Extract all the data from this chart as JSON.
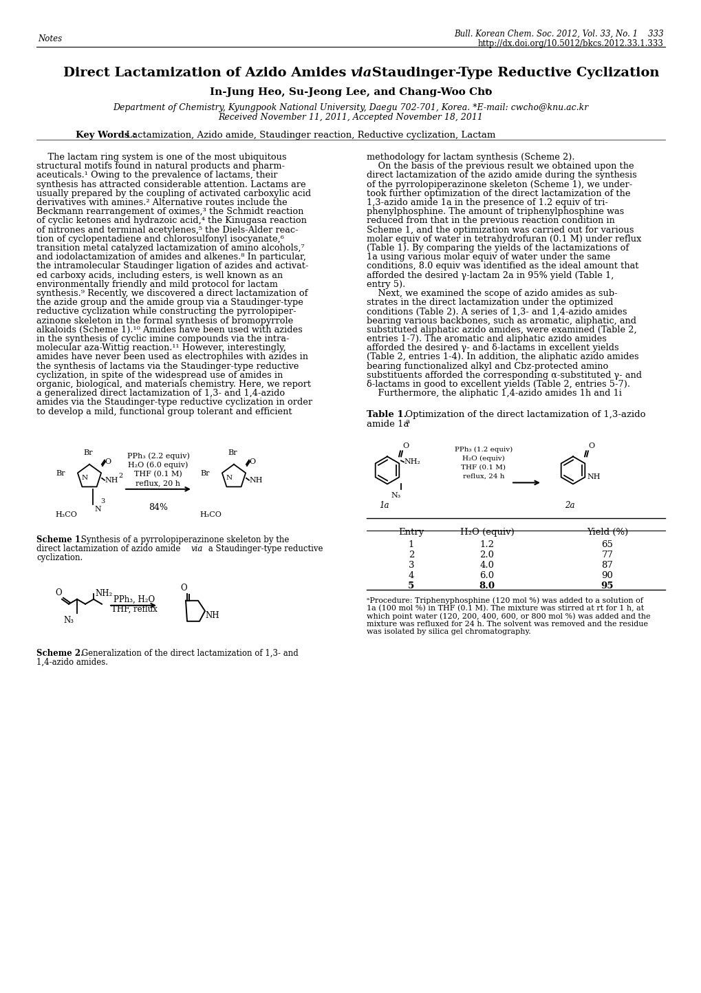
{
  "header_left": "Notes",
  "header_right_line1": "Bull. Korean Chem. Soc. 2012, Vol. 33, No. 1    333",
  "header_right_line2": "http://dx.doi.org/10.5012/bkcs.2012.33.1.333",
  "title_part1": "Direct Lactamization of Azido Amides ",
  "title_via": "via",
  "title_part2": " Staudinger-Type Reductive Cyclization",
  "authors_part1": "In-Jung Heo, Su-Jeong Lee, and Chang-Woo Cho",
  "authors_star": "*",
  "affiliation1": "Department of Chemistry, Kyungpook National University, Daegu 702-701, Korea. *E-mail: cwcho@knu.ac.kr",
  "affiliation2": "Received November 11, 2011, Accepted November 18, 2011",
  "kw_bold": "Key Words :",
  "kw_normal": " Lactamization, Azido amide, Staudinger reaction, Reductive cyclization, Lactam",
  "col1_lines": [
    "    The lactam ring system is one of the most ubiquitous",
    "structural motifs found in natural products and pharm-",
    "aceuticals.¹ Owing to the prevalence of lactams, their",
    "synthesis has attracted considerable attention. Lactams are",
    "usually prepared by the coupling of activated carboxylic acid",
    "derivatives with amines.² Alternative routes include the",
    "Beckmann rearrangement of oximes,³ the Schmidt reaction",
    "of cyclic ketones and hydrazoic acid,⁴ the Kinugasa reaction",
    "of nitrones and terminal acetylenes,⁵ the Diels-Alder reac-",
    "tion of cyclopentadiene and chlorosulfonyl isocyanate,⁶",
    "transition metal catalyzed lactamization of amino alcohols,⁷",
    "and iodolactamization of amides and alkenes.⁸ In particular,",
    "the intramolecular Staudinger ligation of azides and activat-",
    "ed carboxy acids, including esters, is well known as an",
    "environmentally friendly and mild protocol for lactam",
    "synthesis.⁹ Recently, we discovered a direct lactamization of",
    "the azide group and the amide group via a Staudinger-type",
    "reductive cyclization while constructing the pyrrolopiper-",
    "azinone skeleton in the formal synthesis of bromopyrrole",
    "alkaloids (Scheme 1).¹⁰ Amides have been used with azides",
    "in the synthesis of cyclic imine compounds via the intra-",
    "molecular aza-Wittig reaction.¹¹ However, interestingly,",
    "amides have never been used as electrophiles with azides in",
    "the synthesis of lactams via the Staudinger-type reductive",
    "cyclization, in spite of the widespread use of amides in",
    "organic, biological, and materials chemistry. Here, we report",
    "a generalized direct lactamization of 1,3- and 1,4-azido",
    "amides via the Staudinger-type reductive cyclization in order",
    "to develop a mild, functional group tolerant and efficient"
  ],
  "col2_lines": [
    "methodology for lactam synthesis (Scheme 2).",
    "    On the basis of the previous result we obtained upon the",
    "direct lactamization of the azido amide during the synthesis",
    "of the pyrrolopiperazinone skeleton (Scheme 1), we under-",
    "took further optimization of the direct lactamization of the",
    "1,3-azido amide 1a in the presence of 1.2 equiv of tri-",
    "phenylphosphine. The amount of triphenylphosphine was",
    "reduced from that in the previous reaction condition in",
    "Scheme 1, and the optimization was carried out for various",
    "molar equiv of water in tetrahydrofuran (0.1 M) under reflux",
    "(Table 1). By comparing the yields of the lactamizations of",
    "1a using various molar equiv of water under the same",
    "conditions, 8.0 equiv was identified as the ideal amount that",
    "afforded the desired γ-lactam 2a in 95% yield (Table 1,",
    "entry 5).",
    "    Next, we examined the scope of azido amides as sub-",
    "strates in the direct lactamization under the optimized",
    "conditions (Table 2). A series of 1,3- and 1,4-azido amides",
    "bearing various backbones, such as aromatic, aliphatic, and",
    "substituted aliphatic azido amides, were examined (Table 2,",
    "entries 1-7). The aromatic and aliphatic azido amides",
    "afforded the desired γ- and δ-lactams in excellent yields",
    "(Table 2, entries 1-4). In addition, the aliphatic azido amides",
    "bearing functionalized alkyl and Cbz-protected amino",
    "substituents afforded the corresponding α-substituted γ- and",
    "δ-lactams in good to excellent yields (Table 2, entries 5-7).",
    "    Furthermore, the aliphatic 1,4-azido amides 1h and 1i"
  ],
  "scheme1_cap_lines": [
    "Scheme 1. Synthesis of a pyrrolopiperazinone skeleton by the",
    "direct lactamization of azido amide via a Staudinger-type reductive",
    "cyclization."
  ],
  "scheme2_cap_lines": [
    "Scheme 2. Generalization of the direct lactamization of 1,3- and",
    "1,4-azido amides."
  ],
  "table1_cap": "Table 1.",
  "table1_cap_rest": " Optimization of the direct lactamization of 1,3-azido",
  "table1_cap_line2": "amide 1a",
  "table1_sup": "a",
  "table1_headers": [
    "Entry",
    "H₂O (equiv)",
    "Yield (%)"
  ],
  "table1_data": [
    [
      "1",
      "1.2",
      "65"
    ],
    [
      "2",
      "2.0",
      "77"
    ],
    [
      "3",
      "4.0",
      "87"
    ],
    [
      "4",
      "6.0",
      "90"
    ],
    [
      "5",
      "8.0",
      "95"
    ]
  ],
  "table1_note_lines": [
    "aProc.: Triphenyphosphine (120 mol %) was added to a solution of",
    "1a (100 mol %) in THF (0.1 M). The mixture was stirred at rt for 1 h, at",
    "which point water (120, 200, 400, 600, or 800 mol %) was added and the",
    "mixture was refluxed for 24 h. The solvent was removed and the residue",
    "was isolated by silica gel chromatography."
  ],
  "scheme1_reagents1": "PPh₃ (2.2 equiv)",
  "scheme1_reagents2": "H₂O (6.0 equiv)",
  "scheme1_reagents3": "THF (0.1 M)",
  "scheme1_reagents4": "reflux, 20 h",
  "scheme1_yield": "84%",
  "table1_reagents1": "PPh₃ (1.2 equiv)",
  "table1_reagents2": "H₂O (equiv)",
  "table1_reagents3": "THF (0.1 M)",
  "table1_reagents4": "reflux, 24 h",
  "scheme2_reagents1": "PPh₃, H₂O",
  "scheme2_reagents2": "THF, reflux"
}
